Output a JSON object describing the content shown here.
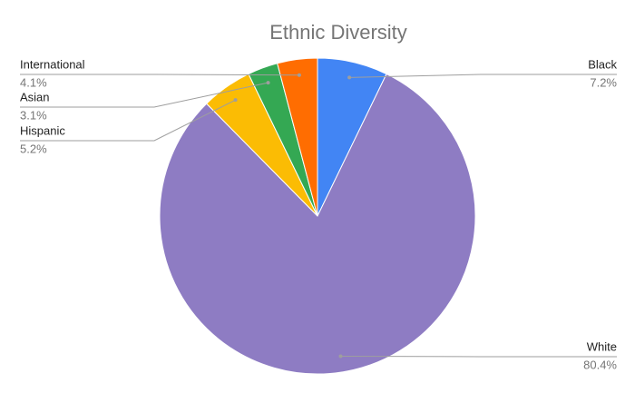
{
  "chart_data": {
    "type": "pie",
    "title": "Ethnic Diversity",
    "categories": [
      "Black",
      "White",
      "Hispanic",
      "Asian",
      "International"
    ],
    "values": [
      7.2,
      80.4,
      5.2,
      3.1,
      4.1
    ],
    "value_labels": [
      "7.2%",
      "80.4%",
      "5.2%",
      "3.1%",
      "4.1%"
    ],
    "colors": [
      "#4285f4",
      "#8e7cc3",
      "#fbbc04",
      "#34a853",
      "#ff6d01"
    ]
  }
}
